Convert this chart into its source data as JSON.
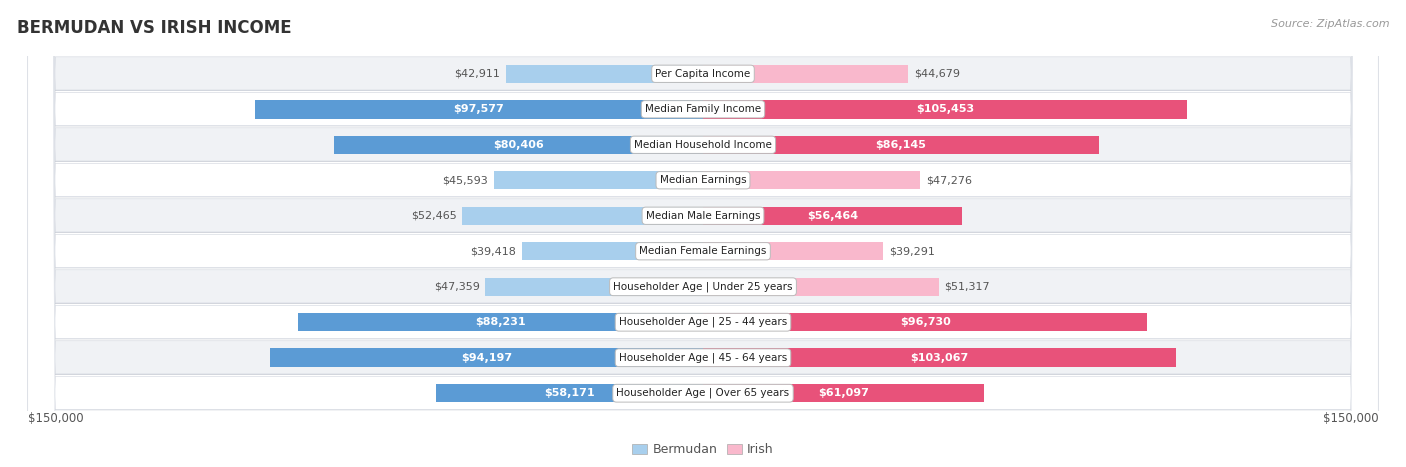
{
  "title": "BERMUDAN VS IRISH INCOME",
  "source": "Source: ZipAtlas.com",
  "categories": [
    "Per Capita Income",
    "Median Family Income",
    "Median Household Income",
    "Median Earnings",
    "Median Male Earnings",
    "Median Female Earnings",
    "Householder Age | Under 25 years",
    "Householder Age | 25 - 44 years",
    "Householder Age | 45 - 64 years",
    "Householder Age | Over 65 years"
  ],
  "bermudan_values": [
    42911,
    97577,
    80406,
    45593,
    52465,
    39418,
    47359,
    88231,
    94197,
    58171
  ],
  "irish_values": [
    44679,
    105453,
    86145,
    47276,
    56464,
    39291,
    51317,
    96730,
    103067,
    61097
  ],
  "bermudan_color_light": "#A8CFED",
  "bermudan_color_dark": "#5B9BD5",
  "irish_color_light": "#F9B8CC",
  "irish_color_dark": "#E8527A",
  "inside_label_threshold": 55000,
  "max_value": 150000,
  "bg_color": "#ffffff",
  "row_bg_even": "#f0f2f5",
  "row_bg_odd": "#ffffff",
  "row_border_color": "#d0d4da",
  "title_color": "#333333",
  "source_color": "#999999",
  "outside_label_color": "#555555",
  "inside_label_color": "#ffffff",
  "axis_label_color": "#555555",
  "legend_label_color": "#555555"
}
